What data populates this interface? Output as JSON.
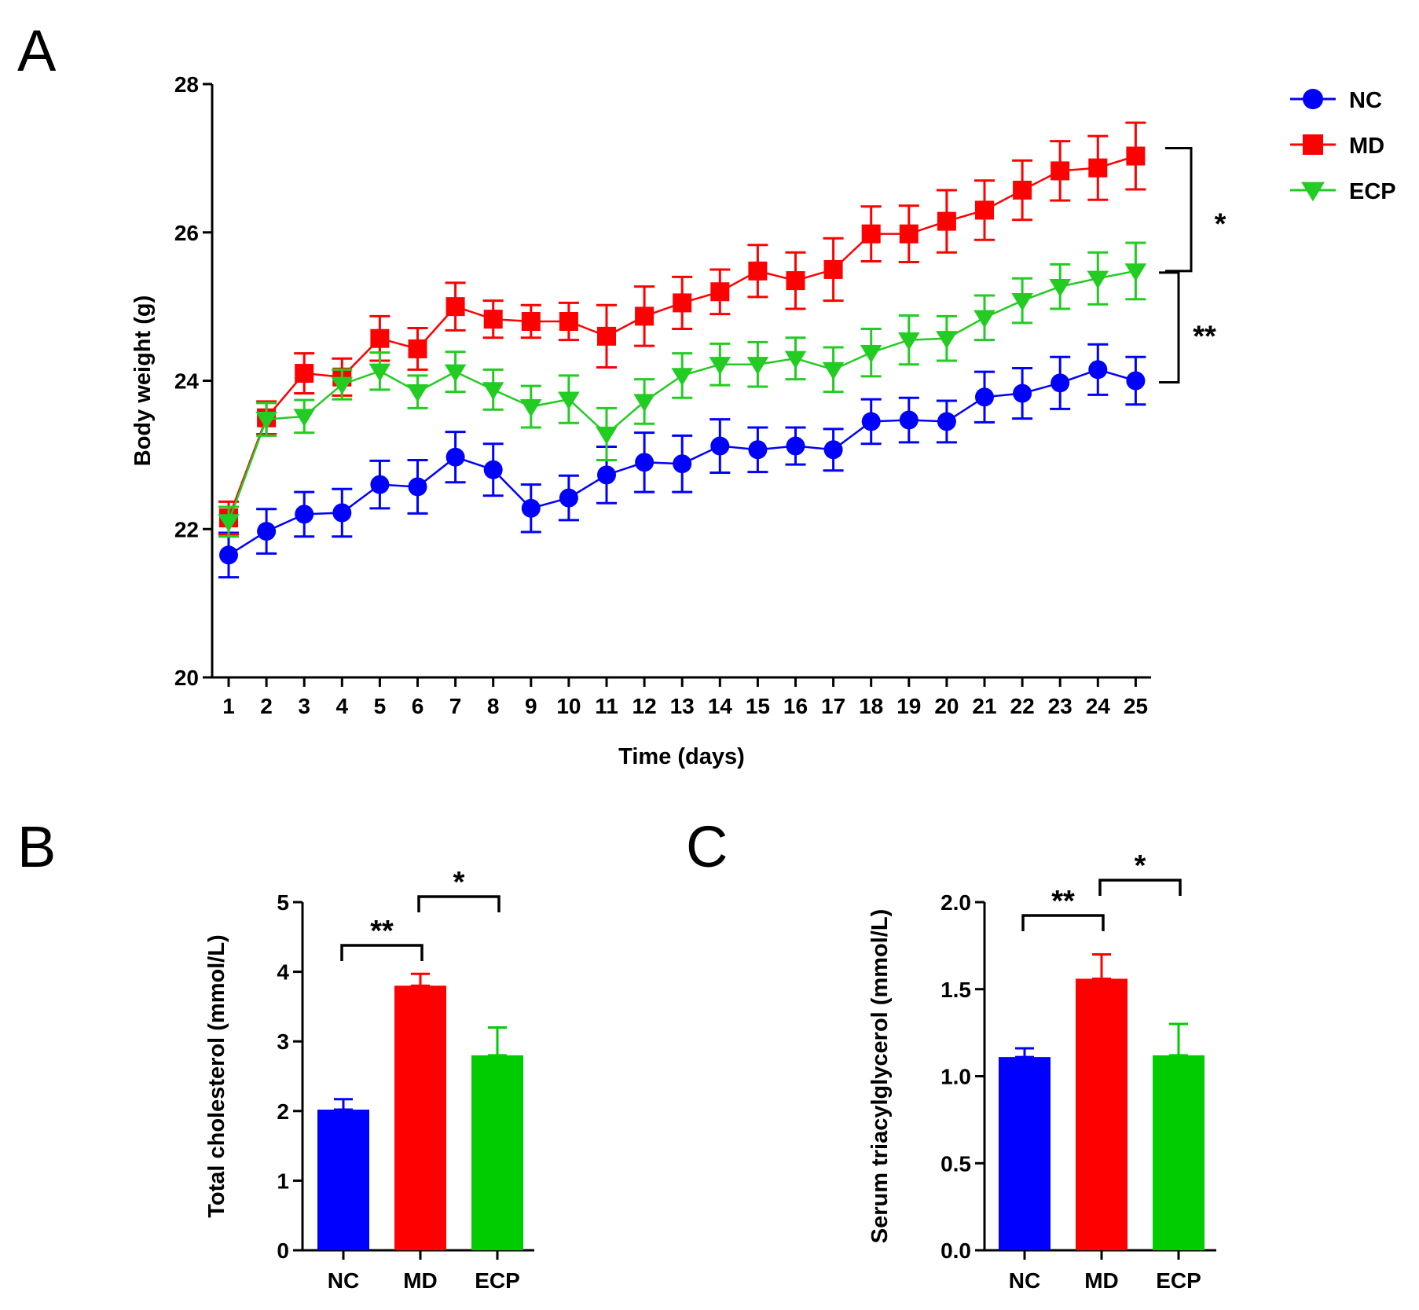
{
  "chart_data": [
    {
      "id": "A",
      "panel_label": "A",
      "type": "line",
      "xlabel": "Time (days)",
      "ylabel": "Body weight (g)",
      "ylim": [
        20,
        28
      ],
      "yticks": [
        20,
        22,
        24,
        26,
        28
      ],
      "x": [
        1,
        2,
        3,
        4,
        5,
        6,
        7,
        8,
        9,
        10,
        11,
        12,
        13,
        14,
        15,
        16,
        17,
        18,
        19,
        20,
        21,
        22,
        23,
        24,
        25
      ],
      "legend": {
        "position": "top-right"
      },
      "series": [
        {
          "name": "NC",
          "color": "#0000ff",
          "marker": "circle",
          "values": [
            21.65,
            21.97,
            22.2,
            22.22,
            22.6,
            22.57,
            22.97,
            22.8,
            22.28,
            22.42,
            22.73,
            22.9,
            22.88,
            23.12,
            23.07,
            23.12,
            23.07,
            23.45,
            23.47,
            23.45,
            23.78,
            23.83,
            23.97,
            24.15,
            24.0
          ],
          "errors": [
            0.3,
            0.3,
            0.3,
            0.32,
            0.32,
            0.36,
            0.34,
            0.35,
            0.32,
            0.3,
            0.38,
            0.4,
            0.38,
            0.36,
            0.3,
            0.25,
            0.28,
            0.3,
            0.3,
            0.28,
            0.34,
            0.34,
            0.35,
            0.34,
            0.32
          ]
        },
        {
          "name": "MD",
          "color": "#ff0000",
          "marker": "square",
          "values": [
            22.15,
            23.5,
            24.1,
            24.05,
            24.57,
            24.43,
            25.0,
            24.83,
            24.8,
            24.8,
            24.6,
            24.87,
            25.05,
            25.2,
            25.48,
            25.35,
            25.5,
            25.98,
            25.98,
            26.15,
            26.3,
            26.57,
            26.83,
            26.87,
            27.03
          ],
          "errors": [
            0.22,
            0.22,
            0.27,
            0.25,
            0.3,
            0.28,
            0.32,
            0.25,
            0.22,
            0.25,
            0.42,
            0.4,
            0.35,
            0.3,
            0.35,
            0.38,
            0.42,
            0.37,
            0.38,
            0.42,
            0.4,
            0.4,
            0.4,
            0.43,
            0.45
          ]
        },
        {
          "name": "ECP",
          "color": "#22cc22",
          "marker": "triangle-down",
          "values": [
            22.1,
            23.48,
            23.52,
            23.95,
            24.13,
            23.85,
            24.12,
            23.88,
            23.65,
            23.75,
            23.28,
            23.72,
            24.07,
            24.22,
            24.22,
            24.3,
            24.15,
            24.38,
            24.55,
            24.57,
            24.85,
            25.08,
            25.27,
            25.38,
            25.48
          ],
          "errors": [
            0.2,
            0.22,
            0.22,
            0.2,
            0.25,
            0.22,
            0.27,
            0.27,
            0.28,
            0.32,
            0.35,
            0.3,
            0.3,
            0.28,
            0.3,
            0.28,
            0.3,
            0.32,
            0.33,
            0.3,
            0.3,
            0.3,
            0.3,
            0.35,
            0.38
          ]
        }
      ],
      "annotations": [
        {
          "text": "*",
          "between": [
            "MD",
            "ECP"
          ]
        },
        {
          "text": "**",
          "between": [
            "ECP",
            "NC"
          ]
        }
      ]
    },
    {
      "id": "B",
      "panel_label": "B",
      "type": "bar",
      "categories": [
        "NC",
        "MD",
        "ECP"
      ],
      "colors": [
        "#0000ff",
        "#ff0000",
        "#00cc00"
      ],
      "values": [
        2.02,
        3.8,
        2.8
      ],
      "errors": [
        0.15,
        0.17,
        0.4
      ],
      "xlabel": "",
      "ylabel": "Total cholesterol (mmol/L)",
      "ylim": [
        0,
        5
      ],
      "yticks": [
        "0",
        "1",
        "2",
        "3",
        "4",
        "5"
      ],
      "annotations": [
        {
          "text": "**",
          "from": "NC",
          "to": "MD"
        },
        {
          "text": "*",
          "from": "MD",
          "to": "ECP"
        }
      ]
    },
    {
      "id": "C",
      "panel_label": "C",
      "type": "bar",
      "categories": [
        "NC",
        "MD",
        "ECP"
      ],
      "colors": [
        "#0000ff",
        "#ff0000",
        "#00cc00"
      ],
      "values": [
        1.11,
        1.56,
        1.12
      ],
      "errors": [
        0.05,
        0.14,
        0.18
      ],
      "xlabel": "",
      "ylabel": "Serum triacylglycerol (mmol/L)",
      "ylim": [
        0,
        2.0
      ],
      "yticks": [
        "0.0",
        "0.5",
        "1.0",
        "1.5",
        "2.0"
      ],
      "annotations": [
        {
          "text": "**",
          "from": "NC",
          "to": "MD"
        },
        {
          "text": "*",
          "from": "MD",
          "to": "ECP"
        }
      ]
    }
  ]
}
